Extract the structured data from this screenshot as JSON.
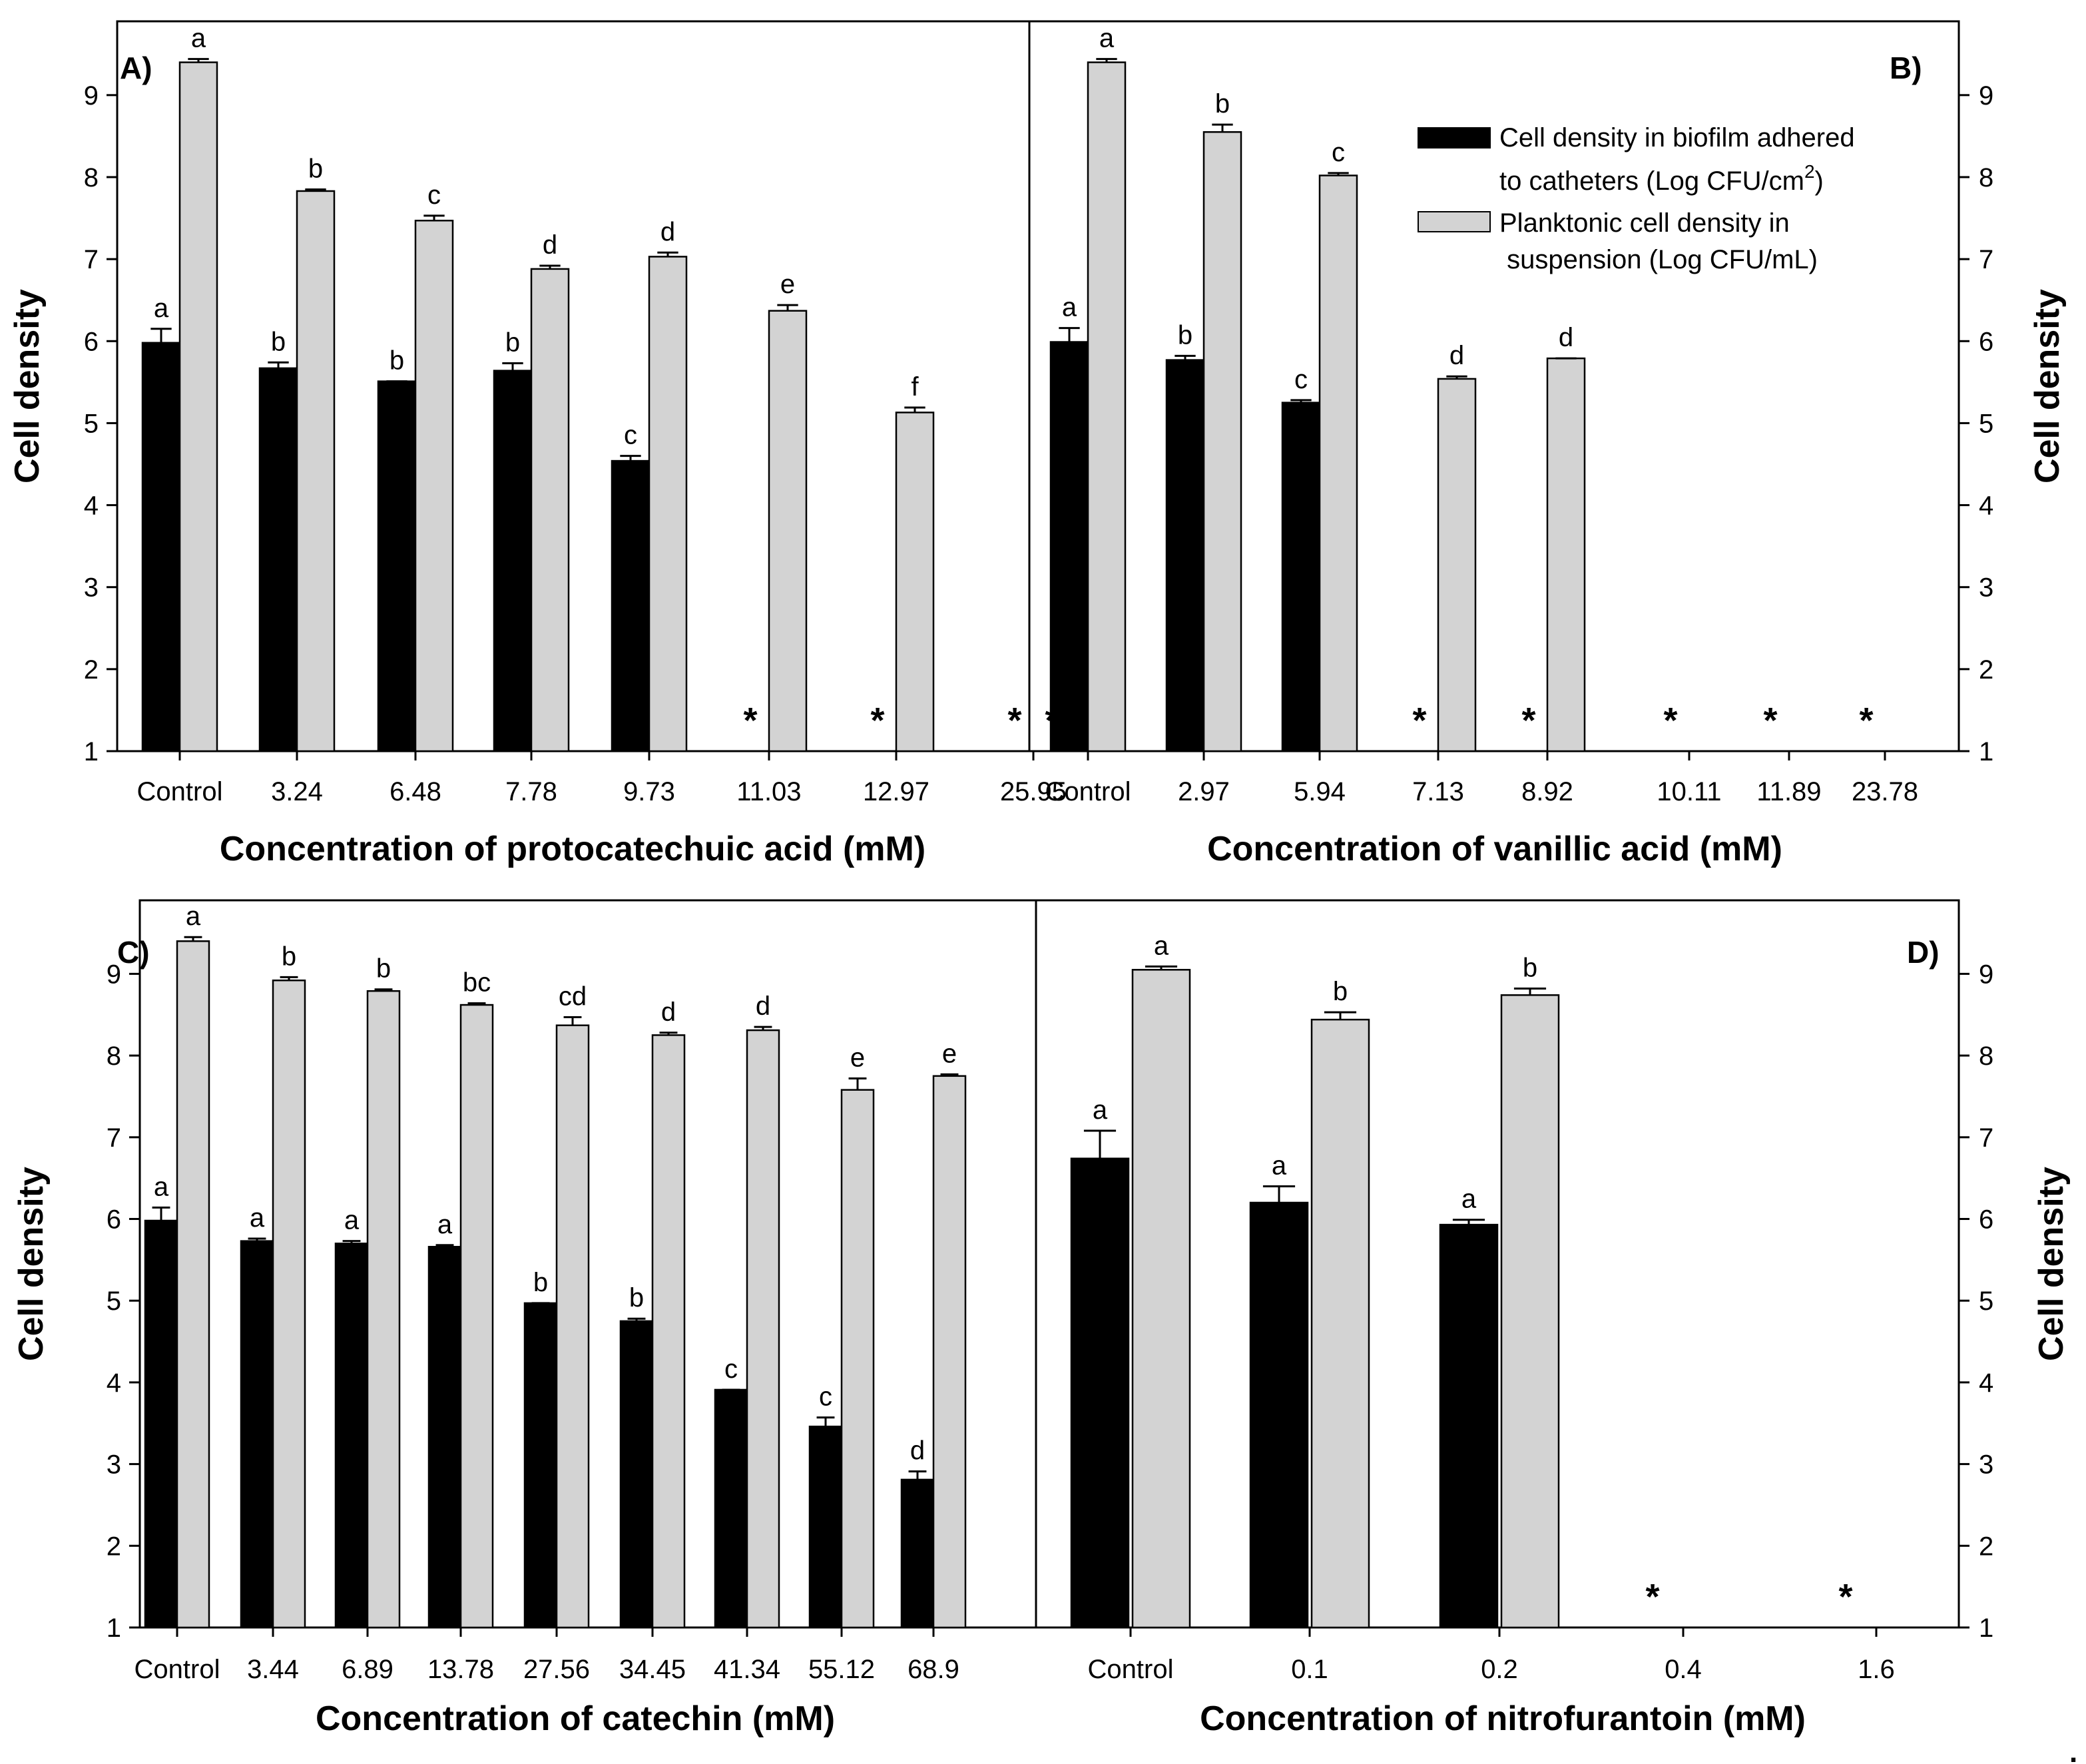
{
  "colors": {
    "biofilm": "#000000",
    "planktonic": "#d3d3d3",
    "axis": "#000000",
    "background": "#ffffff"
  },
  "legend": {
    "biofilm_line1": "Cell density in biofilm adhered",
    "biofilm_line2_prefix": "to catheters (Log CFU/cm",
    "biofilm_line2_sup": "2",
    "biofilm_line2_suffix": ")",
    "planktonic_line1": "Planktonic cell density in",
    "planktonic_line2": " suspension (Log CFU/mL)"
  },
  "chart_data": [
    {
      "panel": "A)",
      "type": "bar",
      "title": "",
      "xlabel": "Concentration of protocatechuic acid (mM)",
      "ylabel": "Cell density",
      "ylim": [
        1,
        9.9
      ],
      "yticks": [
        "1",
        "2",
        "3",
        "4",
        "5",
        "6",
        "7",
        "8",
        "9"
      ],
      "y_axis_side": "left",
      "categories": [
        "Control",
        "3.24",
        "6.48",
        "7.78",
        "9.73",
        "11.03",
        "12.97",
        "25.95"
      ],
      "series": [
        {
          "name": "Cell density in biofilm adhered to catheters (Log CFU/cm2)",
          "values": [
            5.98,
            5.67,
            5.51,
            5.64,
            4.54,
            null,
            null,
            null
          ],
          "errors": [
            0.17,
            0.07,
            0.0,
            0.09,
            0.06,
            null,
            null,
            null
          ],
          "letters": [
            "a",
            "b",
            "b",
            "b",
            "c",
            "*",
            "*",
            "*"
          ]
        },
        {
          "name": "Planktonic cell density in suspension (Log CFU/mL)",
          "values": [
            9.4,
            7.83,
            7.47,
            6.88,
            7.03,
            6.37,
            5.13,
            null
          ],
          "errors": [
            0.04,
            0.02,
            0.06,
            0.04,
            0.05,
            0.07,
            0.06,
            null
          ],
          "letters": [
            "a",
            "b",
            "c",
            "d",
            "d",
            "e",
            "f",
            "*"
          ]
        }
      ]
    },
    {
      "panel": "B)",
      "type": "bar",
      "title": "",
      "xlabel": "Concentration of vanillic acid (mM)",
      "ylabel": "Cell density",
      "ylim": [
        1,
        9.9
      ],
      "yticks": [
        "1",
        "2",
        "3",
        "4",
        "5",
        "6",
        "7",
        "8",
        "9"
      ],
      "y_axis_side": "right",
      "categories": [
        "Control",
        "2.97",
        "5.94",
        "7.13",
        "8.92",
        "10.11",
        "11.89",
        "23.78"
      ],
      "series": [
        {
          "name": "Cell density in biofilm adhered to catheters (Log CFU/cm2)",
          "values": [
            5.99,
            5.77,
            5.25,
            null,
            null,
            null,
            null,
            null
          ],
          "errors": [
            0.17,
            0.05,
            0.03,
            null,
            null,
            null,
            null,
            null
          ],
          "letters": [
            "a",
            "b",
            "c",
            "*",
            "*",
            "*",
            "*",
            "*"
          ]
        },
        {
          "name": "Planktonic cell density in suspension (Log CFU/mL)",
          "values": [
            9.4,
            8.55,
            8.02,
            5.54,
            5.79,
            null,
            null,
            null
          ],
          "errors": [
            0.04,
            0.09,
            0.03,
            0.03,
            0.0,
            null,
            null,
            null
          ],
          "letters": [
            "a",
            "b",
            "c",
            "d",
            "d",
            "",
            "",
            ""
          ]
        }
      ]
    },
    {
      "panel": "C)",
      "type": "bar",
      "title": "",
      "xlabel": "Concentration of catechin (mM)",
      "ylabel": "Cell density",
      "ylim": [
        1,
        9.9
      ],
      "yticks": [
        "1",
        "2",
        "3",
        "4",
        "5",
        "6",
        "7",
        "8",
        "9"
      ],
      "y_axis_side": "left",
      "categories": [
        "Control",
        "3.44",
        "6.89",
        "13.78",
        "27.56",
        "34.45",
        "41.34",
        "55.12",
        "68.9"
      ],
      "series": [
        {
          "name": "Cell density in biofilm adhered to catheters (Log CFU/cm2)",
          "values": [
            5.98,
            5.73,
            5.7,
            5.66,
            4.97,
            4.75,
            3.91,
            3.46,
            2.81
          ],
          "errors": [
            0.16,
            0.03,
            0.03,
            0.02,
            0.0,
            0.03,
            0.0,
            0.11,
            0.1
          ],
          "letters": [
            "a",
            "a",
            "a",
            "a",
            "b",
            "b",
            "c",
            "c",
            "d"
          ]
        },
        {
          "name": "Planktonic cell density in suspension (Log CFU/mL)",
          "values": [
            9.4,
            8.92,
            8.79,
            8.62,
            8.37,
            8.25,
            8.31,
            7.58,
            7.75
          ],
          "errors": [
            0.05,
            0.04,
            0.02,
            0.02,
            0.1,
            0.03,
            0.04,
            0.14,
            0.02
          ],
          "letters": [
            "a",
            "b",
            "b",
            "bc",
            "cd",
            "d",
            "d",
            "e",
            "e"
          ]
        }
      ]
    },
    {
      "panel": "D)",
      "type": "bar",
      "title": "",
      "xlabel": "Concentration of nitrofurantoin (mM)",
      "ylabel": "Cell density",
      "ylim": [
        1,
        9.9
      ],
      "yticks": [
        "1",
        "2",
        "3",
        "4",
        "5",
        "6",
        "7",
        "8",
        "9"
      ],
      "y_axis_side": "right",
      "categories": [
        "Control",
        "0.1",
        "0.2",
        "0.4",
        "1.6"
      ],
      "series": [
        {
          "name": "Cell density in biofilm adhered to catheters (Log CFU/cm2)",
          "values": [
            6.74,
            6.2,
            5.93,
            null,
            null
          ],
          "errors": [
            0.34,
            0.2,
            0.06,
            null,
            null
          ],
          "letters": [
            "a",
            "a",
            "a",
            "*",
            "*"
          ]
        },
        {
          "name": "Planktonic cell density in suspension (Log CFU/mL)",
          "values": [
            9.05,
            8.44,
            8.74,
            null,
            null
          ],
          "errors": [
            0.04,
            0.09,
            0.08,
            null,
            null
          ],
          "letters": [
            "a",
            "b",
            "b",
            "",
            ""
          ]
        }
      ]
    }
  ],
  "trailing_mark": "."
}
